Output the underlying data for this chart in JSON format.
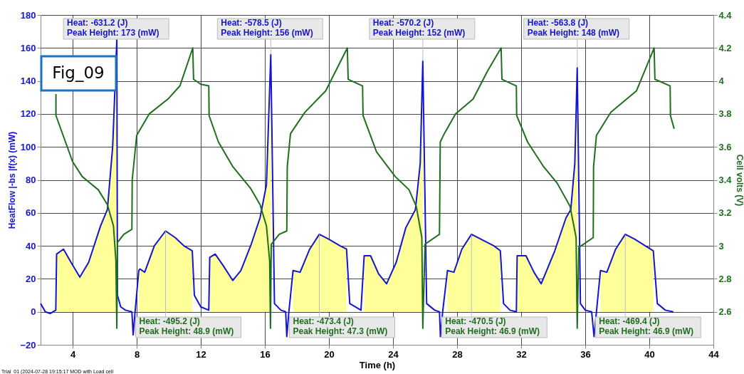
{
  "chart_data": {
    "type": "line",
    "xlabel": "Time (h)",
    "ylabel": "HeatFlow |-bs |f(x) (mW)",
    "y2label": "Cell volts (V)",
    "x": [
      2.0,
      2.3,
      2.6,
      2.95,
      3.0,
      3.43,
      3.9,
      4.45,
      5.0,
      5.74,
      6.17,
      6.5,
      6.76,
      6.8,
      7.0,
      7.3,
      7.7,
      7.78,
      7.9,
      8.13,
      8.2,
      8.5,
      9.1,
      9.8,
      10.4,
      10.95,
      11.47,
      11.6,
      12.0,
      12.5,
      12.56,
      12.9,
      13.4,
      14.0,
      14.5,
      15.15,
      15.7,
      16.1,
      16.37,
      16.6,
      17.0,
      17.3,
      17.37,
      17.5,
      17.76,
      18.2,
      18.8,
      19.4,
      20.0,
      20.7,
      21.1,
      21.3,
      22.0,
      22.2,
      22.6,
      23.1,
      23.6,
      24.2,
      24.8,
      25.4,
      25.7,
      25.86,
      26.1,
      26.6,
      26.9,
      26.96,
      27.1,
      27.4,
      27.8,
      28.3,
      28.9,
      29.5,
      30.3,
      30.7,
      30.9,
      31.3,
      31.7,
      31.75,
      32.3,
      32.8,
      33.25,
      34.1,
      34.8,
      35.1,
      35.35,
      35.5,
      35.7,
      36.0,
      36.4,
      36.55,
      36.7,
      36.95,
      37.35,
      37.9,
      38.5,
      39.1,
      39.75,
      40.25,
      40.5,
      41.0,
      41.5
    ],
    "series": [
      {
        "type": "area",
        "color": "#ffff99",
        "values": [
          null,
          null,
          null,
          null,
          35,
          38,
          30,
          21,
          30,
          52,
          62,
          100,
          165,
          null,
          null,
          null,
          null,
          null,
          null,
          25,
          26,
          24,
          40,
          49,
          45,
          40,
          37,
          null,
          null,
          null,
          33,
          35,
          28,
          19,
          25,
          41,
          57,
          77,
          156,
          null,
          null,
          null,
          null,
          null,
          25,
          24,
          38,
          47,
          44,
          40,
          38,
          null,
          null,
          34,
          34,
          23,
          17,
          30,
          51,
          62,
          90,
          152,
          null,
          null,
          null,
          null,
          null,
          25,
          24,
          38,
          47,
          44,
          40,
          37,
          null,
          null,
          null,
          34,
          34,
          24,
          17,
          37,
          57,
          62,
          90,
          148,
          null,
          null,
          null,
          null,
          null,
          25,
          24,
          38,
          47,
          44,
          40,
          37,
          null,
          null,
          null
        ]
      },
      {
        "color": "#1414d2",
        "values": [
          5,
          0,
          -1,
          1,
          35,
          38,
          30,
          21,
          30,
          52,
          62,
          100,
          165,
          10,
          3,
          1,
          0,
          -14,
          0,
          25,
          26,
          24,
          40,
          49,
          45,
          40,
          37,
          10,
          3,
          1,
          33,
          35,
          28,
          19,
          25,
          41,
          57,
          77,
          156,
          5,
          1,
          0,
          -15,
          0,
          25,
          24,
          38,
          47,
          44,
          40,
          38,
          5,
          1,
          34,
          34,
          23,
          17,
          30,
          51,
          62,
          90,
          152,
          5,
          1,
          0,
          -15,
          0,
          25,
          24,
          38,
          47,
          44,
          40,
          37,
          5,
          1,
          0,
          34,
          34,
          24,
          17,
          37,
          57,
          62,
          90,
          148,
          5,
          1,
          0,
          -15,
          0,
          25,
          24,
          38,
          47,
          44,
          40,
          37,
          5,
          1,
          0
        ]
      },
      {
        "axis": "y2",
        "color": "#1f6e1f",
        "x": [
          2.96,
          2.96,
          4.0,
          4.6,
          5.6,
          6.17,
          6.55,
          6.7,
          6.76,
          6.8,
          7.2,
          7.7,
          7.72,
          8.0,
          8.78,
          9.95,
          10.7,
          11.5,
          11.55,
          12.0,
          12.5,
          12.52,
          13.1,
          14.0,
          15.1,
          15.7,
          16.1,
          16.3,
          16.35,
          16.4,
          16.9,
          17.37,
          17.4,
          17.6,
          18.5,
          19.8,
          21.15,
          21.2,
          22.1,
          22.13,
          22.97,
          24.14,
          25.0,
          25.45,
          25.8,
          25.86,
          26.0,
          26.9,
          26.95,
          27.2,
          27.9,
          29.0,
          29.9,
          30.75,
          30.8,
          31.7,
          31.72,
          32.4,
          33.4,
          34.25,
          35.05,
          35.43,
          35.5,
          35.6,
          36.5,
          36.52,
          36.7,
          37.6,
          39.2,
          40.3,
          40.35,
          41.3,
          41.32,
          41.55
        ],
        "values": [
          3.92,
          3.79,
          3.51,
          3.42,
          3.34,
          3.25,
          3.12,
          2.91,
          2.5,
          3.02,
          3.07,
          3.1,
          3.4,
          3.67,
          3.8,
          3.89,
          3.97,
          4.2,
          4.01,
          3.98,
          3.97,
          3.79,
          3.63,
          3.48,
          3.35,
          3.25,
          3.12,
          2.91,
          2.5,
          3.01,
          3.07,
          3.09,
          3.48,
          3.68,
          3.81,
          3.94,
          4.2,
          4.01,
          3.97,
          3.79,
          3.57,
          3.42,
          3.34,
          3.24,
          3.05,
          2.5,
          3.01,
          3.07,
          3.63,
          3.68,
          3.8,
          3.89,
          4.06,
          4.2,
          4.01,
          3.97,
          3.79,
          3.63,
          3.48,
          3.38,
          3.24,
          3.05,
          2.5,
          2.99,
          3.05,
          3.48,
          3.67,
          3.81,
          3.94,
          4.2,
          4.01,
          3.97,
          3.79,
          3.71
        ]
      }
    ],
    "xlim": [
      2,
      44
    ],
    "xticks": [
      4,
      8,
      12,
      16,
      20,
      24,
      28,
      32,
      36,
      40,
      44
    ],
    "ylim": [
      -20,
      180
    ],
    "yticks": [
      -20,
      0,
      20,
      40,
      60,
      80,
      100,
      120,
      140,
      160,
      180
    ],
    "y2lim": [
      2.4,
      4.4
    ],
    "y2ticks": [
      2.6,
      2.8,
      3,
      3.2,
      3.4,
      3.6,
      3.8,
      4,
      4.2,
      4.4
    ],
    "grid": true,
    "marker": "none",
    "line_style": "solid",
    "annotations": [
      "Fig_09",
      "Trial_01 (2024-07-28 19:15:17 MOD with Load cell",
      {
        "text": "Heat:  -631.2 (J)\nPeak Height:  173 (mW)",
        "x": 6.76,
        "y": 165
      },
      {
        "text": "Heat:  -578.5 (J)\nPeak Height:  156 (mW)",
        "x": 16.37,
        "y": 156
      },
      {
        "text": "Heat:  -570.2 (J)\nPeak Height:  152 (mW)",
        "x": 25.86,
        "y": 152
      },
      {
        "text": "Heat:  -563.8 (J)\nPeak Height:  148 (mW)",
        "x": 35.5,
        "y": 148
      },
      {
        "text": "Heat:  -495.2 (J)\nPeak Height:  48.9 (mW)",
        "x": 9.8,
        "y": 49
      },
      {
        "text": "Heat:  -473.4 (J)\nPeak Height:  47.3 (mW)",
        "x": 19.4,
        "y": 47
      },
      {
        "text": "Heat:  -470.5 (J)\nPeak Height:  46.9 (mW)",
        "x": 28.9,
        "y": 47
      },
      {
        "text": "Heat:  -469.4 (J)\nPeak Height:  46.9 (mW)",
        "x": 38.5,
        "y": 47
      }
    ]
  }
}
